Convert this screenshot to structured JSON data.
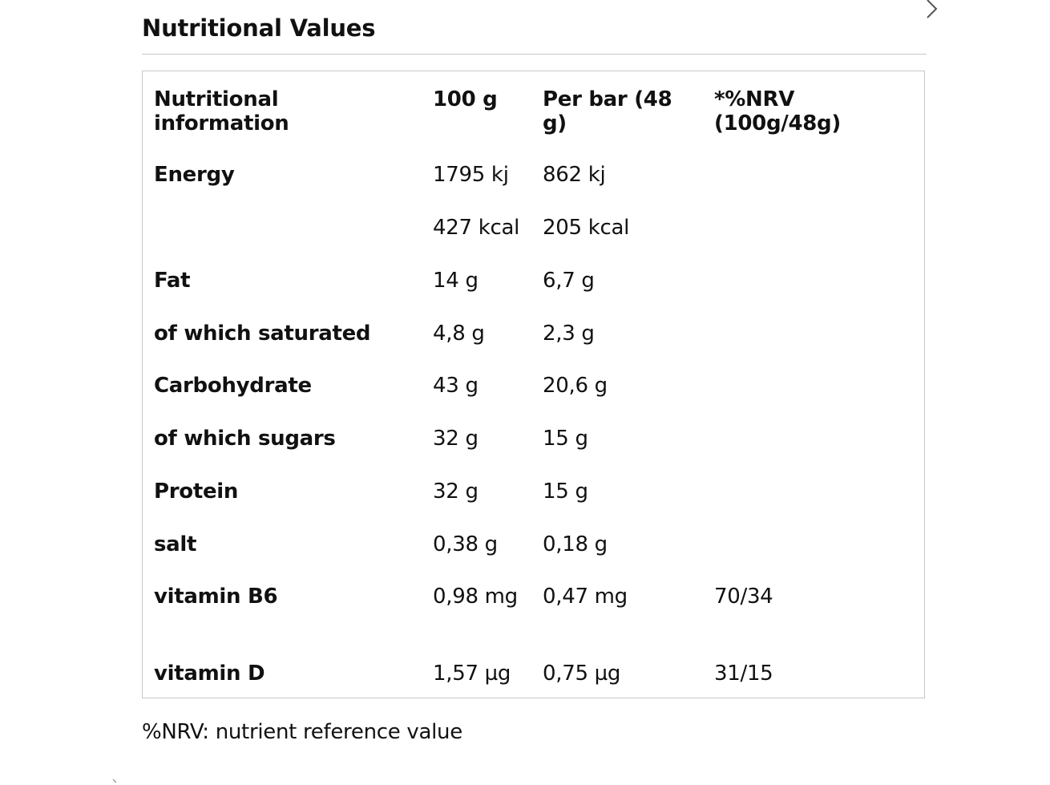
{
  "section": {
    "title": "Nutritional Values"
  },
  "table": {
    "headers": [
      "Nutritional information",
      "100 g",
      "Per bar (48 g)",
      "*%NRV (100g/48g)"
    ],
    "rows": [
      [
        "Energy",
        "1795 kj",
        "862 kj",
        ""
      ],
      [
        "",
        "427 kcal",
        "205 kcal",
        ""
      ],
      [
        "Fat",
        "14 g",
        "6,7 g",
        ""
      ],
      [
        "of which saturated",
        "4,8 g",
        "2,3 g",
        ""
      ],
      [
        "Carbohydrate",
        "43 g",
        "20,6 g",
        ""
      ],
      [
        "of which sugars",
        "32 g",
        "15 g",
        ""
      ],
      [
        "Protein",
        "32 g",
        "15 g",
        ""
      ],
      [
        "salt",
        "0,38 g",
        "0,18 g",
        ""
      ],
      [
        "vitamin B6",
        "0,98 mg",
        "0,47 mg",
        "70/34"
      ],
      [
        "vitamin D",
        "1,57 µg",
        "0,75 µg",
        "31/15"
      ]
    ]
  },
  "footnote": "%NRV: nutrient reference value",
  "icons": {
    "next": "chevron-right-icon"
  },
  "colors": {
    "text": "#111111",
    "border": "#c8c8c8",
    "background": "#ffffff"
  }
}
